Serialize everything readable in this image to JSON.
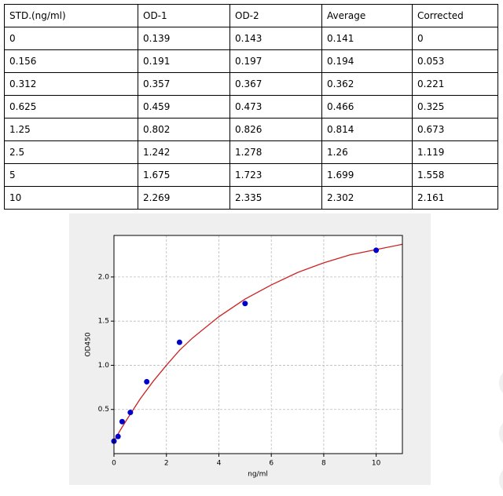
{
  "table": {
    "header": [
      "STD.(ng/ml)",
      "OD-1",
      "OD-2",
      "Average",
      "Corrected"
    ],
    "rows": [
      [
        "0",
        "0.139",
        "0.143",
        "0.141",
        "0"
      ],
      [
        "0.156",
        "0.191",
        "0.197",
        "0.194",
        "0.053"
      ],
      [
        "0.312",
        "0.357",
        "0.367",
        "0.362",
        "0.221"
      ],
      [
        "0.625",
        "0.459",
        "0.473",
        "0.466",
        "0.325"
      ],
      [
        "1.25",
        "0.802",
        "0.826",
        "0.814",
        "0.673"
      ],
      [
        "2.5",
        "1.242",
        "1.278",
        "1.26",
        "1.119"
      ],
      [
        "5",
        "1.675",
        "1.723",
        "1.699",
        "1.558"
      ],
      [
        "10",
        "2.269",
        "2.335",
        "2.302",
        "2.161"
      ]
    ]
  },
  "chart_data": {
    "type": "scatter",
    "xlabel": "ng/ml",
    "ylabel": "OD450",
    "xlim": [
      0,
      11
    ],
    "ylim": [
      0,
      2.47
    ],
    "xticks": [
      0,
      2,
      4,
      6,
      8,
      10
    ],
    "yticks": [
      {
        "value": 0.5,
        "label": "0.5"
      },
      {
        "value": 1,
        "label": "1.0"
      },
      {
        "value": 1.5,
        "label": "1.5"
      },
      {
        "value": 2,
        "label": "2.0"
      }
    ],
    "grid": true,
    "series": [
      {
        "color": "#cc2222",
        "style": "line",
        "x": [
          0,
          0.25,
          0.5,
          1,
          1.5,
          2,
          2.5,
          3,
          4,
          5,
          6,
          7,
          8,
          9,
          10,
          11
        ],
        "values": [
          0.14,
          0.27,
          0.39,
          0.62,
          0.82,
          1.0,
          1.17,
          1.31,
          1.55,
          1.75,
          1.91,
          2.05,
          2.16,
          2.25,
          2.31,
          2.37
        ]
      },
      {
        "color": "#0000cc",
        "style": "points",
        "x": [
          0,
          0.156,
          0.312,
          0.625,
          1.25,
          2.5,
          5,
          10
        ],
        "values": [
          0.141,
          0.194,
          0.362,
          0.466,
          0.814,
          1.26,
          1.699,
          2.302
        ]
      }
    ]
  }
}
